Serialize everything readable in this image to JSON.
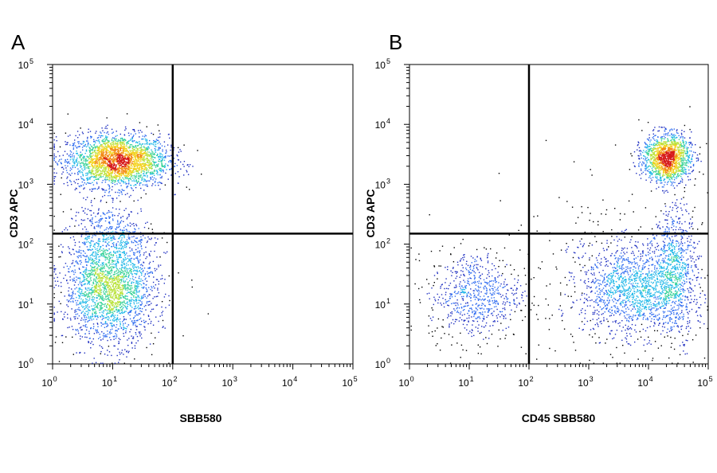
{
  "chart_data": [
    {
      "type": "scatter",
      "panel_label": "A",
      "title": "",
      "xlabel": "SBB580",
      "ylabel": "CD3 APC",
      "x_scale": "log",
      "y_scale": "log",
      "xlim": [
        1,
        100000
      ],
      "ylim": [
        1,
        100000
      ],
      "x_ticks": [
        {
          "base": "10",
          "exp": "0"
        },
        {
          "base": "10",
          "exp": "1"
        },
        {
          "base": "10",
          "exp": "2"
        },
        {
          "base": "10",
          "exp": "3"
        },
        {
          "base": "10",
          "exp": "4"
        },
        {
          "base": "10",
          "exp": "5"
        }
      ],
      "y_ticks": [
        {
          "base": "10",
          "exp": "0"
        },
        {
          "base": "10",
          "exp": "1"
        },
        {
          "base": "10",
          "exp": "2"
        },
        {
          "base": "10",
          "exp": "3"
        },
        {
          "base": "10",
          "exp": "4"
        },
        {
          "base": "10",
          "exp": "5"
        }
      ],
      "quadrant_gate": {
        "x": 100,
        "y": 150
      },
      "grid": false,
      "populations": [
        {
          "x_center": 12,
          "y_center": 2500,
          "x_log_spread": 0.42,
          "y_log_spread": 0.22,
          "events": 2600,
          "peak_x": 25,
          "peak_y": 3000
        },
        {
          "x_center": 9,
          "y_center": 18,
          "x_log_spread": 0.38,
          "y_log_spread": 0.45,
          "events": 2300
        },
        {
          "x_center": 9,
          "y_center": 150,
          "x_log_spread": 0.35,
          "y_log_spread": 0.25,
          "events": 350
        }
      ]
    },
    {
      "type": "scatter",
      "panel_label": "B",
      "title": "",
      "xlabel": "CD45 SBB580",
      "ylabel": "CD3 APC",
      "x_scale": "log",
      "y_scale": "log",
      "xlim": [
        1,
        100000
      ],
      "ylim": [
        1,
        100000
      ],
      "x_ticks": [
        {
          "base": "10",
          "exp": "0"
        },
        {
          "base": "10",
          "exp": "1"
        },
        {
          "base": "10",
          "exp": "2"
        },
        {
          "base": "10",
          "exp": "3"
        },
        {
          "base": "10",
          "exp": "4"
        },
        {
          "base": "10",
          "exp": "5"
        }
      ],
      "y_ticks": [
        {
          "base": "10",
          "exp": "0"
        },
        {
          "base": "10",
          "exp": "1"
        },
        {
          "base": "10",
          "exp": "2"
        },
        {
          "base": "10",
          "exp": "3"
        },
        {
          "base": "10",
          "exp": "4"
        },
        {
          "base": "10",
          "exp": "5"
        }
      ],
      "quadrant_gate": {
        "x": 100,
        "y": 150
      },
      "grid": false,
      "populations": [
        {
          "x_center": 20000,
          "y_center": 2800,
          "x_log_spread": 0.2,
          "y_log_spread": 0.2,
          "events": 1500,
          "peak_x": 17000,
          "peak_y": 3000
        },
        {
          "x_center": 12,
          "y_center": 14,
          "x_log_spread": 0.38,
          "y_log_spread": 0.38,
          "events": 700
        },
        {
          "x_center": 6000,
          "y_center": 18,
          "x_log_spread": 0.45,
          "y_log_spread": 0.38,
          "events": 1400
        },
        {
          "x_center": 28000,
          "y_center": 40,
          "x_log_spread": 0.18,
          "y_log_spread": 0.55,
          "events": 700
        },
        {
          "x_center": 1500,
          "y_center": 30,
          "x_log_spread": 0.8,
          "y_log_spread": 0.8,
          "events": 250
        }
      ]
    }
  ],
  "colors": {
    "axis": "#000000",
    "gate": "#000000",
    "low_density": "#000000",
    "density_ramp": [
      "#000000",
      "#1f2fc0",
      "#2f6cf0",
      "#21b8e8",
      "#3cd39a",
      "#b8e23a",
      "#f3d21d",
      "#f28a14",
      "#d61a1a"
    ]
  }
}
